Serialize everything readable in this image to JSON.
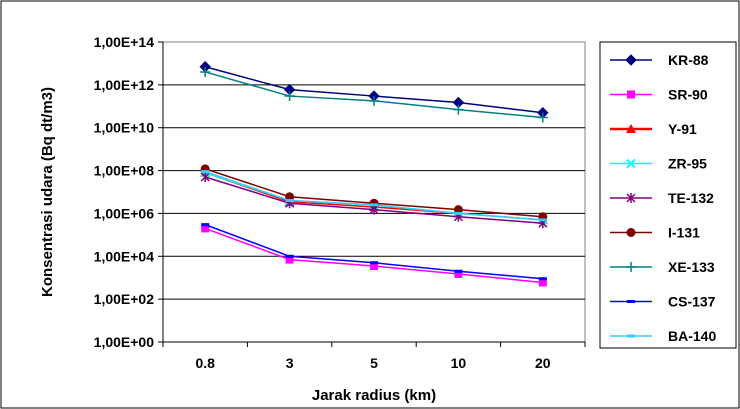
{
  "chart_data": {
    "type": "line",
    "xlabel": "Jarak radius (km)",
    "ylabel": "Konsentrasi udara (Bq dt/m3)",
    "y_scale": "log",
    "ylim": [
      1,
      100000000000000
    ],
    "yticks": [
      1,
      100,
      10000,
      1000000,
      100000000,
      10000000000,
      1000000000000,
      100000000000000
    ],
    "ytick_labels": [
      "1,00E+00",
      "1,00E+02",
      "1,00E+04",
      "1,00E+06",
      "1,00E+08",
      "1,00E+10",
      "1,00E+12",
      "1,00E+14"
    ],
    "categories": [
      "0.8",
      "3",
      "5",
      "10",
      "20"
    ],
    "grid": "horizontal",
    "legend_position": "right",
    "series": [
      {
        "name": "KR-88",
        "color": "#000080",
        "marker": "diamond",
        "values": [
          7000000000000.0,
          600000000000.0,
          300000000000.0,
          150000000000.0,
          50000000000.0
        ]
      },
      {
        "name": "SR-90",
        "color": "#FF00FF",
        "marker": "square",
        "values": [
          200000.0,
          7000.0,
          3500.0,
          1500.0,
          600.0
        ]
      },
      {
        "name": "Y-91",
        "color": "#FF0000",
        "marker": "triangle",
        "values": [
          80000000.0,
          3500000.0,
          2000000.0,
          1000000.0,
          500000.0
        ]
      },
      {
        "name": "ZR-95",
        "color": "#00FFFF",
        "marker": "x",
        "values": [
          80000000.0,
          4000000.0,
          2500000.0,
          1000000.0,
          500000.0
        ]
      },
      {
        "name": "TE-132",
        "color": "#800080",
        "marker": "star",
        "values": [
          50000000.0,
          3000000.0,
          1500000.0,
          700000.0,
          350000.0
        ]
      },
      {
        "name": "I-131",
        "color": "#800000",
        "marker": "circle",
        "values": [
          120000000.0,
          6000000.0,
          3000000.0,
          1500000.0,
          700000.0
        ]
      },
      {
        "name": "XE-133",
        "color": "#008080",
        "marker": "plus",
        "values": [
          4000000000000.0,
          300000000000.0,
          180000000000.0,
          70000000000.0,
          30000000000.0
        ]
      },
      {
        "name": "CS-137",
        "color": "#0000FF",
        "marker": "dash",
        "values": [
          300000.0,
          10000.0,
          5000.0,
          2000.0,
          900.0
        ]
      },
      {
        "name": "BA-140",
        "color": "#33CCFF",
        "marker": "dash",
        "values": [
          90000000.0,
          4000000.0,
          2500000.0,
          1000000.0,
          500000.0
        ]
      }
    ]
  }
}
